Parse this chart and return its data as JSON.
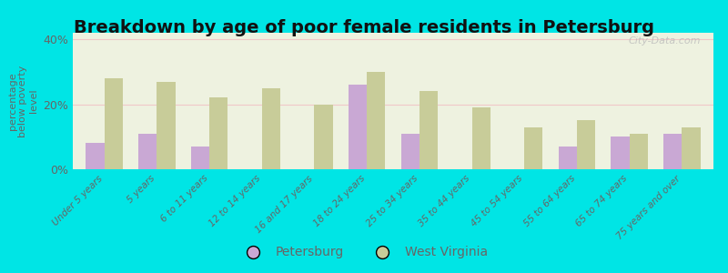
{
  "title": "Breakdown by age of poor female residents in Petersburg",
  "categories": [
    "Under 5 years",
    "5 years",
    "6 to 11 years",
    "12 to 14 years",
    "16 and 17 years",
    "18 to 24 years",
    "25 to 34 years",
    "35 to 44 years",
    "45 to 54 years",
    "55 to 64 years",
    "65 to 74 years",
    "75 years and over"
  ],
  "petersburg_values": [
    8.0,
    11.0,
    7.0,
    0.0,
    0.0,
    26.0,
    11.0,
    0.0,
    0.0,
    7.0,
    10.0,
    11.0
  ],
  "wv_values": [
    28.0,
    27.0,
    22.0,
    25.0,
    20.0,
    30.0,
    24.0,
    19.0,
    13.0,
    15.0,
    11.0,
    13.0
  ],
  "petersburg_color": "#c9a8d4",
  "wv_color": "#c8cc99",
  "plot_bg": "#eef2e0",
  "outer_bg": "#00e5e5",
  "ylabel": "percentage\nbelow poverty\nlevel",
  "ylim": [
    0,
    42
  ],
  "yticks": [
    0,
    20,
    40
  ],
  "ytick_labels": [
    "0%",
    "20%",
    "40%"
  ],
  "title_fontsize": 14,
  "watermark": "City-Data.com",
  "legend_labels": [
    "Petersburg",
    "West Virginia"
  ],
  "bar_width": 0.35,
  "grid_color": "#f0c8c8",
  "tick_color": "#666666",
  "title_color": "#111111"
}
